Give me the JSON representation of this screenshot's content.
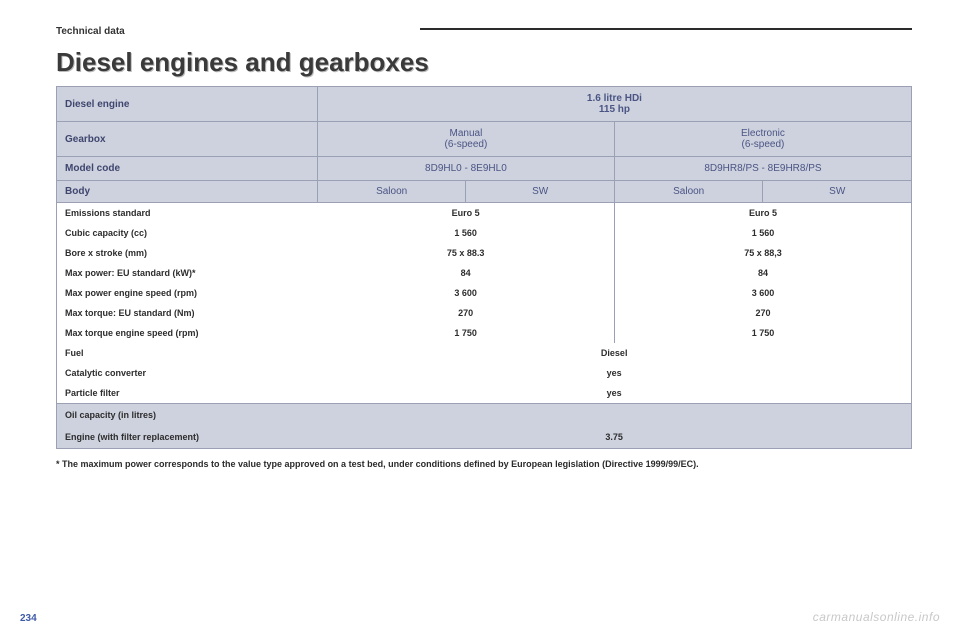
{
  "section_label": "Technical data",
  "page_title": "Diesel engines and gearboxes",
  "page_number": "234",
  "watermark": "carmanualsonline.info",
  "footnote": "* The maximum power corresponds to the value type approved on a test bed, under conditions defined by European legislation (Directive 1999/99/EC).",
  "table": {
    "engine_label": "Diesel engine",
    "engine_value": "1.6 litre HDi\n115 hp",
    "gearbox_label": "Gearbox",
    "gearbox_manual": "Manual\n(6-speed)",
    "gearbox_electronic": "Electronic\n(6-speed)",
    "model_label": "Model code",
    "model_manual": "8D9HL0 - 8E9HL0",
    "model_electronic": "8D9HR8/PS - 8E9HR8/PS",
    "body_label": "Body",
    "body_saloon": "Saloon",
    "body_sw": "SW",
    "rows": [
      {
        "label": "Emissions standard",
        "manual": "Euro 5",
        "electronic": "Euro 5"
      },
      {
        "label": "Cubic capacity (cc)",
        "manual": "1 560",
        "electronic": "1 560"
      },
      {
        "label": "Bore x stroke (mm)",
        "manual": "75 x 88.3",
        "electronic": "75 x 88,3"
      },
      {
        "label": "Max power: EU standard (kW)*",
        "manual": "84",
        "electronic": "84"
      },
      {
        "label": "Max power engine speed (rpm)",
        "manual": "3 600",
        "electronic": "3 600"
      },
      {
        "label": "Max torque: EU standard (Nm)",
        "manual": "270",
        "electronic": "270"
      },
      {
        "label": "Max torque engine speed (rpm)",
        "manual": "1 750",
        "electronic": "1 750"
      }
    ],
    "fuel_label": "Fuel",
    "fuel_value": "Diesel",
    "cat_label": "Catalytic converter",
    "cat_value": "yes",
    "pf_label": "Particle filter",
    "pf_value": "yes",
    "oil_label1": "Oil capacity (in litres)",
    "oil_label2": "Engine (with filter replacement)",
    "oil_value": "3.75"
  },
  "colors": {
    "header_bg": "#ced1de",
    "border": "#9ca0b4",
    "label_text": "#3f466e",
    "value_text": "#4a5584",
    "page_num": "#3f5aa8"
  }
}
